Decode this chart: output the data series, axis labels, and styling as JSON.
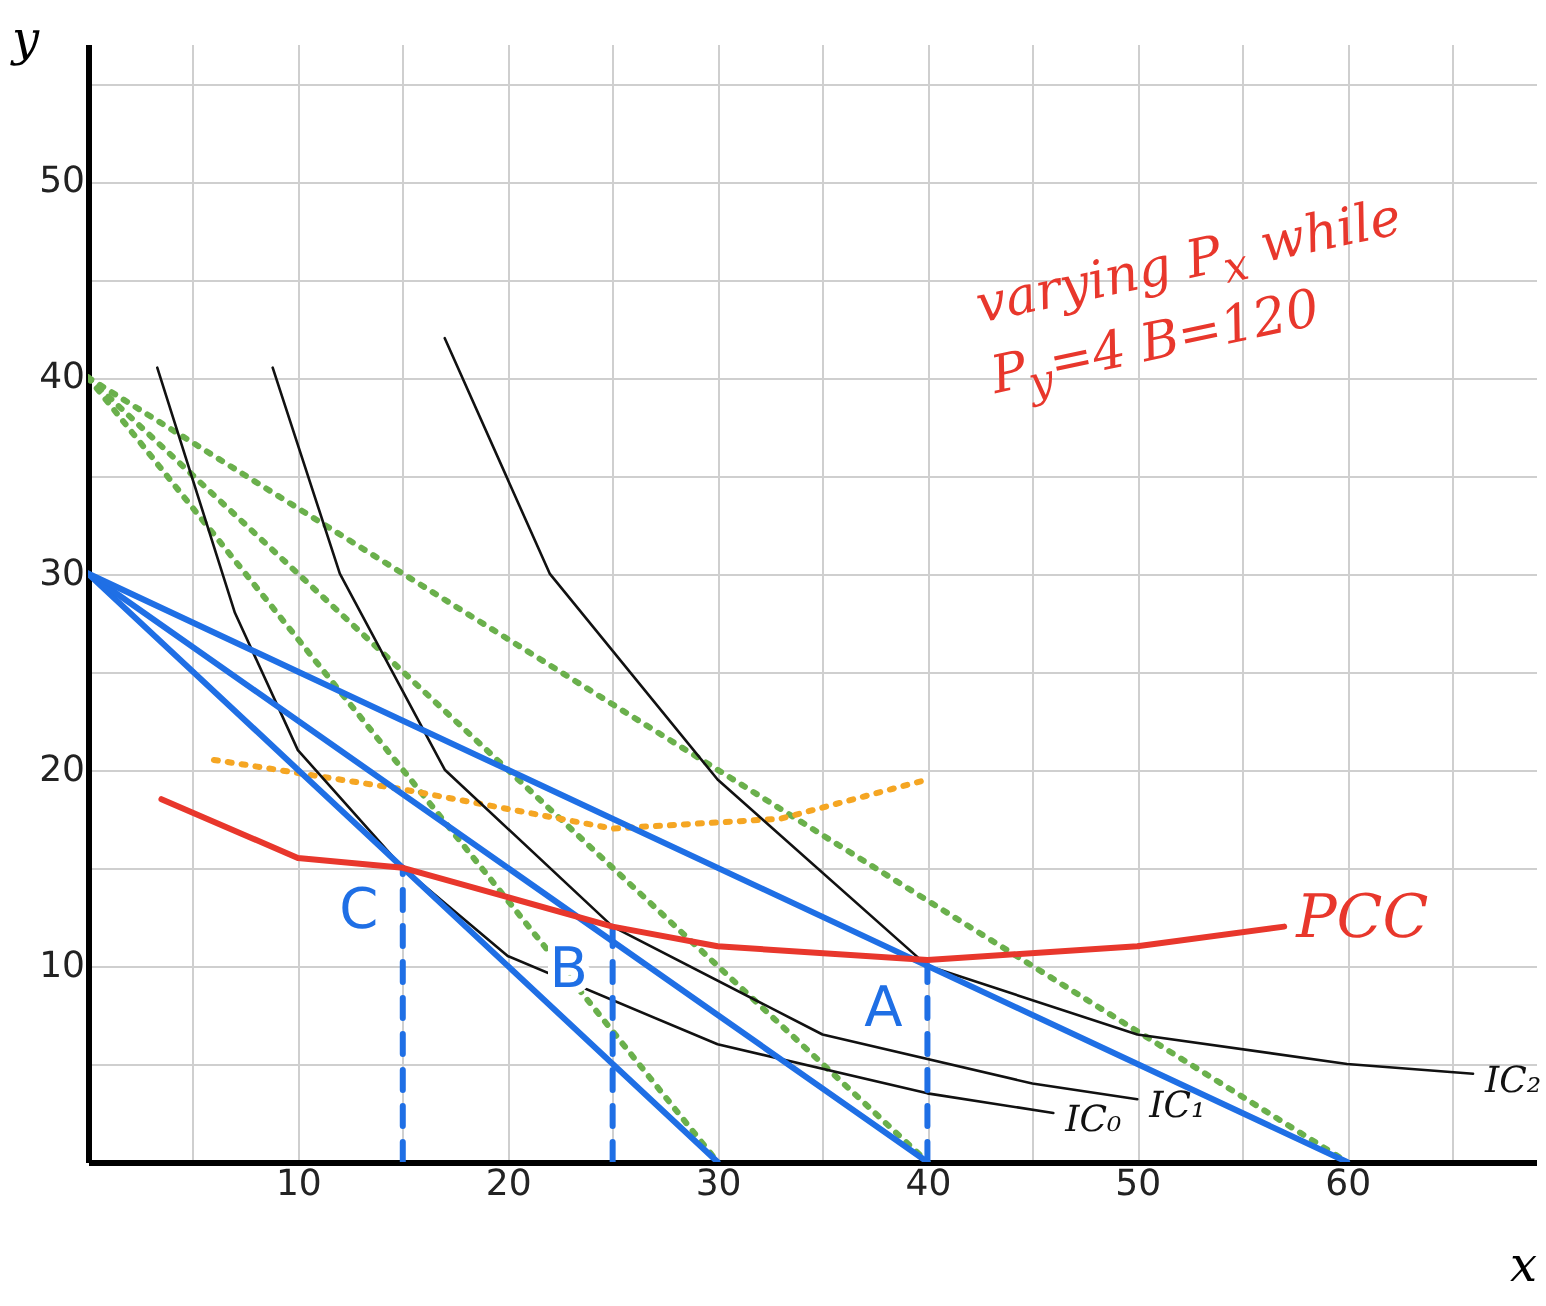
{
  "chart_data": {
    "type": "line",
    "xlabel": "x",
    "ylabel": "y",
    "xlim": [
      0,
      69
    ],
    "ylim": [
      0,
      57
    ],
    "xticks": [
      {
        "value": 5,
        "label": null
      },
      10,
      {
        "value": 15,
        "label": null
      },
      20,
      {
        "value": 25,
        "label": null
      },
      30,
      {
        "value": 35,
        "label": null
      },
      40,
      {
        "value": 45,
        "label": null
      },
      50,
      {
        "value": 55,
        "label": null
      },
      60,
      {
        "value": 65,
        "label": null
      }
    ],
    "yticks": [
      {
        "value": 5,
        "label": null
      },
      10,
      {
        "value": 15,
        "label": null
      },
      20,
      {
        "value": 25,
        "label": null
      },
      30,
      {
        "value": 35,
        "label": null
      },
      40,
      {
        "value": 45,
        "label": null
      },
      50,
      {
        "value": 55,
        "label": null
      }
    ],
    "grid": true,
    "series": [
      {
        "color": "#6ab04c",
        "line_style": "dotted",
        "x": [
          0,
          30
        ],
        "values": [
          40,
          0
        ]
      },
      {
        "color": "#6ab04c",
        "line_style": "dotted",
        "x": [
          0,
          40
        ],
        "values": [
          40,
          0
        ]
      },
      {
        "color": "#6ab04c",
        "line_style": "dotted",
        "x": [
          0,
          60
        ],
        "values": [
          40,
          0
        ]
      },
      {
        "color": "#f5a623",
        "line_style": "dotted",
        "x": [
          6,
          15,
          25,
          33,
          40
        ],
        "values": [
          20.5,
          19,
          17,
          17.5,
          19.5
        ]
      },
      {
        "name": "IC₀",
        "color": "#111111",
        "line_style": "solid",
        "x": [
          3.3,
          7,
          10,
          15,
          20,
          30,
          40,
          46
        ],
        "values": [
          40.5,
          28,
          21,
          15,
          10.5,
          6,
          3.5,
          2.5
        ]
      },
      {
        "name": "IC₁",
        "color": "#111111",
        "line_style": "solid",
        "x": [
          8.8,
          12,
          17,
          25,
          35,
          45,
          50
        ],
        "values": [
          40.5,
          30,
          20,
          12,
          6.5,
          4,
          3.2
        ]
      },
      {
        "name": "IC₂",
        "color": "#111111",
        "line_style": "solid",
        "x": [
          17,
          22,
          30,
          40,
          50,
          60,
          66
        ],
        "values": [
          42,
          30,
          19.5,
          10,
          6.5,
          5,
          4.5
        ]
      },
      {
        "color": "#1f6fe5",
        "line_style": "solid",
        "x": [
          0,
          30
        ],
        "values": [
          30,
          0
        ]
      },
      {
        "color": "#1f6fe5",
        "line_style": "solid",
        "x": [
          0,
          40
        ],
        "values": [
          30,
          0
        ]
      },
      {
        "color": "#1f6fe5",
        "line_style": "solid",
        "x": [
          0,
          60
        ],
        "values": [
          30,
          0
        ]
      },
      {
        "color": "#1f6fe5",
        "line_style": "dashed",
        "x": [
          15,
          15
        ],
        "values": [
          0,
          15
        ]
      },
      {
        "color": "#1f6fe5",
        "line_style": "dashed",
        "x": [
          25,
          25
        ],
        "values": [
          0,
          12
        ]
      },
      {
        "color": "#1f6fe5",
        "line_style": "dashed",
        "x": [
          40,
          40
        ],
        "values": [
          0,
          10
        ]
      },
      {
        "name": "PCC",
        "color": "#e8372c",
        "line_style": "solid",
        "x": [
          3.5,
          10,
          15,
          20,
          25,
          30,
          40,
          50,
          57
        ],
        "values": [
          18.5,
          15.5,
          15,
          13.5,
          12,
          11,
          10.3,
          11,
          12
        ]
      }
    ],
    "annotations": [
      {
        "text": "A",
        "x": 40,
        "y": 10
      },
      {
        "text": "B",
        "x": 25,
        "y": 12
      },
      {
        "text": "C",
        "x": 15,
        "y": 15
      },
      "varying P$_{x}$ while P$_{y}$=4 B=120"
    ]
  }
}
